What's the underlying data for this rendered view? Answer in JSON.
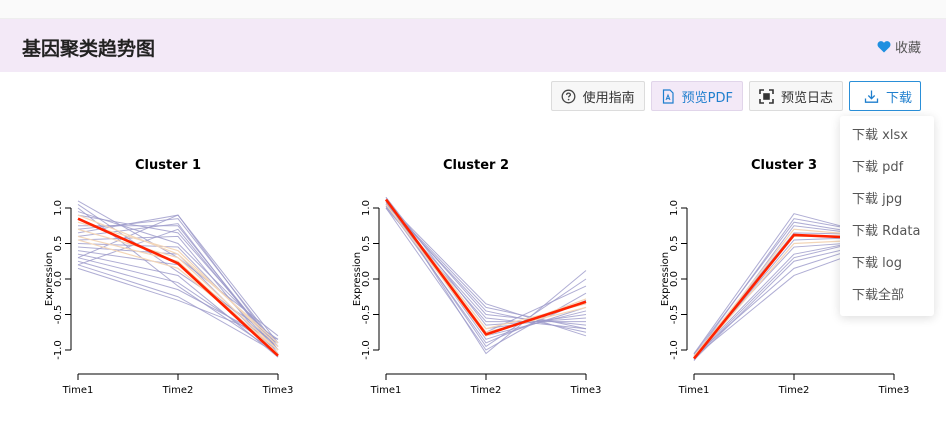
{
  "header": {
    "title": "基因聚类趋势图",
    "favorite_label": "收藏"
  },
  "toolbar": {
    "guide_label": "使用指南",
    "preview_pdf_label": "预览PDF",
    "preview_log_label": "预览日志",
    "download_label": "下载"
  },
  "download_menu": {
    "items": [
      "下载 xlsx",
      "下载 pdf",
      "下载 jpg",
      "下载 Rdata",
      "下载 log",
      "下载全部"
    ]
  },
  "colors": {
    "header_bg": "#f3e9f7",
    "accent": "#1f7fce",
    "mean_line": "#ff2200",
    "cluster_lines": "#9b99c9",
    "light_lines": "#f3d6b8"
  },
  "chart_data": [
    {
      "type": "line",
      "title": "Cluster 1",
      "ylabel": "Expression",
      "x": [
        "Time1",
        "Time2",
        "Time3"
      ],
      "ylim": [
        -1.0,
        1.0
      ],
      "yticks": [
        "1.0",
        "0.5",
        "0.0",
        "-0.5",
        "-1.0"
      ],
      "mean": [
        0.85,
        0.22,
        -1.08
      ],
      "series": [
        {
          "values": [
            1.1,
            0.3,
            -0.8
          ]
        },
        {
          "values": [
            1.05,
            0.1,
            -0.85
          ]
        },
        {
          "values": [
            0.95,
            0.5,
            -0.9
          ]
        },
        {
          "values": [
            0.9,
            0.65,
            -0.95
          ]
        },
        {
          "values": [
            0.75,
            0.75,
            -1.0
          ]
        },
        {
          "values": [
            0.7,
            0.85,
            -0.95
          ]
        },
        {
          "values": [
            0.65,
            0.9,
            -1.0
          ]
        },
        {
          "values": [
            0.6,
            0.78,
            -1.05
          ]
        },
        {
          "values": [
            0.55,
            0.6,
            -1.1
          ]
        },
        {
          "values": [
            0.5,
            0.45,
            -1.0
          ]
        },
        {
          "values": [
            0.45,
            0.35,
            -1.05
          ]
        },
        {
          "values": [
            0.4,
            0.2,
            -0.95
          ]
        },
        {
          "values": [
            0.35,
            0.05,
            -1.1
          ]
        },
        {
          "values": [
            0.3,
            -0.05,
            -1.0
          ]
        },
        {
          "values": [
            0.25,
            -0.15,
            -0.9
          ]
        },
        {
          "values": [
            0.2,
            -0.25,
            -1.05
          ]
        },
        {
          "values": [
            0.15,
            -0.3,
            -0.85
          ]
        },
        {
          "values": [
            0.3,
            0.9,
            -0.9
          ]
        },
        {
          "values": [
            0.2,
            0.7,
            -1.0
          ]
        },
        {
          "values": [
            1.0,
            -0.1,
            -1.05
          ]
        }
      ],
      "light_series": [
        {
          "values": [
            0.8,
            0.4,
            -0.95
          ]
        },
        {
          "values": [
            0.7,
            0.3,
            -1.0
          ]
        },
        {
          "values": [
            0.6,
            0.25,
            -1.05
          ]
        },
        {
          "values": [
            0.9,
            0.35,
            -0.9
          ]
        },
        {
          "values": [
            0.55,
            0.15,
            -1.0
          ]
        }
      ]
    },
    {
      "type": "line",
      "title": "Cluster 2",
      "ylabel": "Expression",
      "x": [
        "Time1",
        "Time2",
        "Time3"
      ],
      "ylim": [
        -1.0,
        1.0
      ],
      "yticks": [
        "1.0",
        "0.5",
        "0.0",
        "-0.5",
        "-1.0"
      ],
      "mean": [
        1.12,
        -0.78,
        -0.32
      ],
      "series": [
        {
          "values": [
            1.15,
            -1.05,
            0.12
          ]
        },
        {
          "values": [
            1.1,
            -0.95,
            0.0
          ]
        },
        {
          "values": [
            1.08,
            -0.35,
            -0.8
          ]
        },
        {
          "values": [
            1.05,
            -0.45,
            -0.75
          ]
        },
        {
          "values": [
            1.02,
            -0.55,
            -0.7
          ]
        },
        {
          "values": [
            1.0,
            -0.6,
            -0.6
          ]
        },
        {
          "values": [
            1.1,
            -0.7,
            -0.5
          ]
        },
        {
          "values": [
            1.12,
            -0.85,
            -0.4
          ]
        },
        {
          "values": [
            1.05,
            -0.9,
            -0.3
          ]
        },
        {
          "values": [
            1.0,
            -1.0,
            -0.2
          ]
        },
        {
          "values": [
            1.08,
            -0.5,
            -0.65
          ]
        },
        {
          "values": [
            1.15,
            -0.65,
            -0.55
          ]
        },
        {
          "values": [
            1.03,
            -0.75,
            -0.1
          ]
        },
        {
          "values": [
            1.06,
            -0.4,
            -0.7
          ]
        },
        {
          "values": [
            1.1,
            -0.8,
            -0.45
          ]
        }
      ],
      "light_series": [
        {
          "values": [
            1.1,
            -0.7,
            -0.35
          ]
        },
        {
          "values": [
            1.05,
            -0.8,
            -0.28
          ]
        },
        {
          "values": [
            1.12,
            -0.75,
            -0.4
          ]
        }
      ]
    },
    {
      "type": "line",
      "title": "Cluster 3",
      "ylabel": "Expression",
      "x": [
        "Time1",
        "Time2",
        "Time3"
      ],
      "ylim": [
        -1.0,
        1.0
      ],
      "yticks": [
        "1.0",
        "0.5",
        "0.0",
        "-0.5",
        "-1.0"
      ],
      "mean": [
        -1.12,
        0.62,
        0.56
      ],
      "series": [
        {
          "values": [
            -1.05,
            0.92,
            0.55
          ]
        },
        {
          "values": [
            -1.1,
            0.85,
            0.6
          ]
        },
        {
          "values": [
            -1.15,
            0.75,
            0.58
          ]
        },
        {
          "values": [
            -1.08,
            0.65,
            0.62
          ]
        },
        {
          "values": [
            -1.12,
            0.55,
            0.6
          ]
        },
        {
          "values": [
            -1.06,
            0.45,
            0.55
          ]
        },
        {
          "values": [
            -1.1,
            0.35,
            0.62
          ]
        },
        {
          "values": [
            -1.14,
            0.25,
            0.58
          ]
        },
        {
          "values": [
            -1.08,
            0.15,
            0.6
          ]
        },
        {
          "values": [
            -1.1,
            0.05,
            0.56
          ]
        },
        {
          "values": [
            -1.12,
            0.3,
            0.64
          ]
        },
        {
          "values": [
            -1.06,
            0.8,
            0.57
          ]
        }
      ],
      "light_series": [
        {
          "values": [
            -1.1,
            0.7,
            0.58
          ]
        },
        {
          "values": [
            -1.08,
            0.6,
            0.6
          ]
        },
        {
          "values": [
            -1.12,
            0.5,
            0.57
          ]
        }
      ]
    }
  ]
}
